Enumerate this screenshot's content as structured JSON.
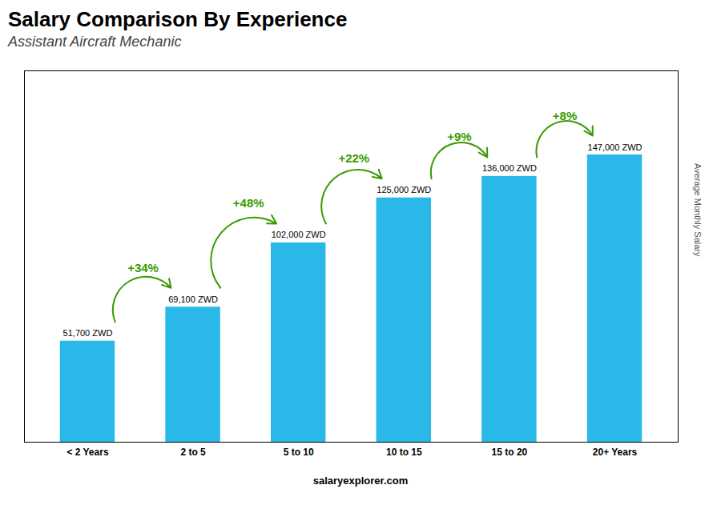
{
  "chart_data": {
    "type": "bar",
    "title": "Salary Comparison By Experience",
    "subtitle": "Assistant Aircraft Mechanic",
    "caption": "salaryexplorer.com",
    "ylabel": "Average Monthly Salary",
    "categories": [
      "< 2 Years",
      "2 to 5",
      "5 to 10",
      "10 to 15",
      "15 to 20",
      "20+ Years"
    ],
    "values": [
      51700,
      69100,
      102000,
      125000,
      136000,
      147000
    ],
    "value_labels": [
      "51,700 ZWD",
      "69,100 ZWD",
      "102,000 ZWD",
      "125,000 ZWD",
      "136,000 ZWD",
      "147,000 ZWD"
    ],
    "data_labels": true,
    "annotations": [
      "+34%",
      "+48%",
      "+22%",
      "+9%",
      "+8%"
    ],
    "color": "#29b8e8",
    "ylim": [
      0,
      190000
    ],
    "tick_labels": "x",
    "grid": false
  }
}
